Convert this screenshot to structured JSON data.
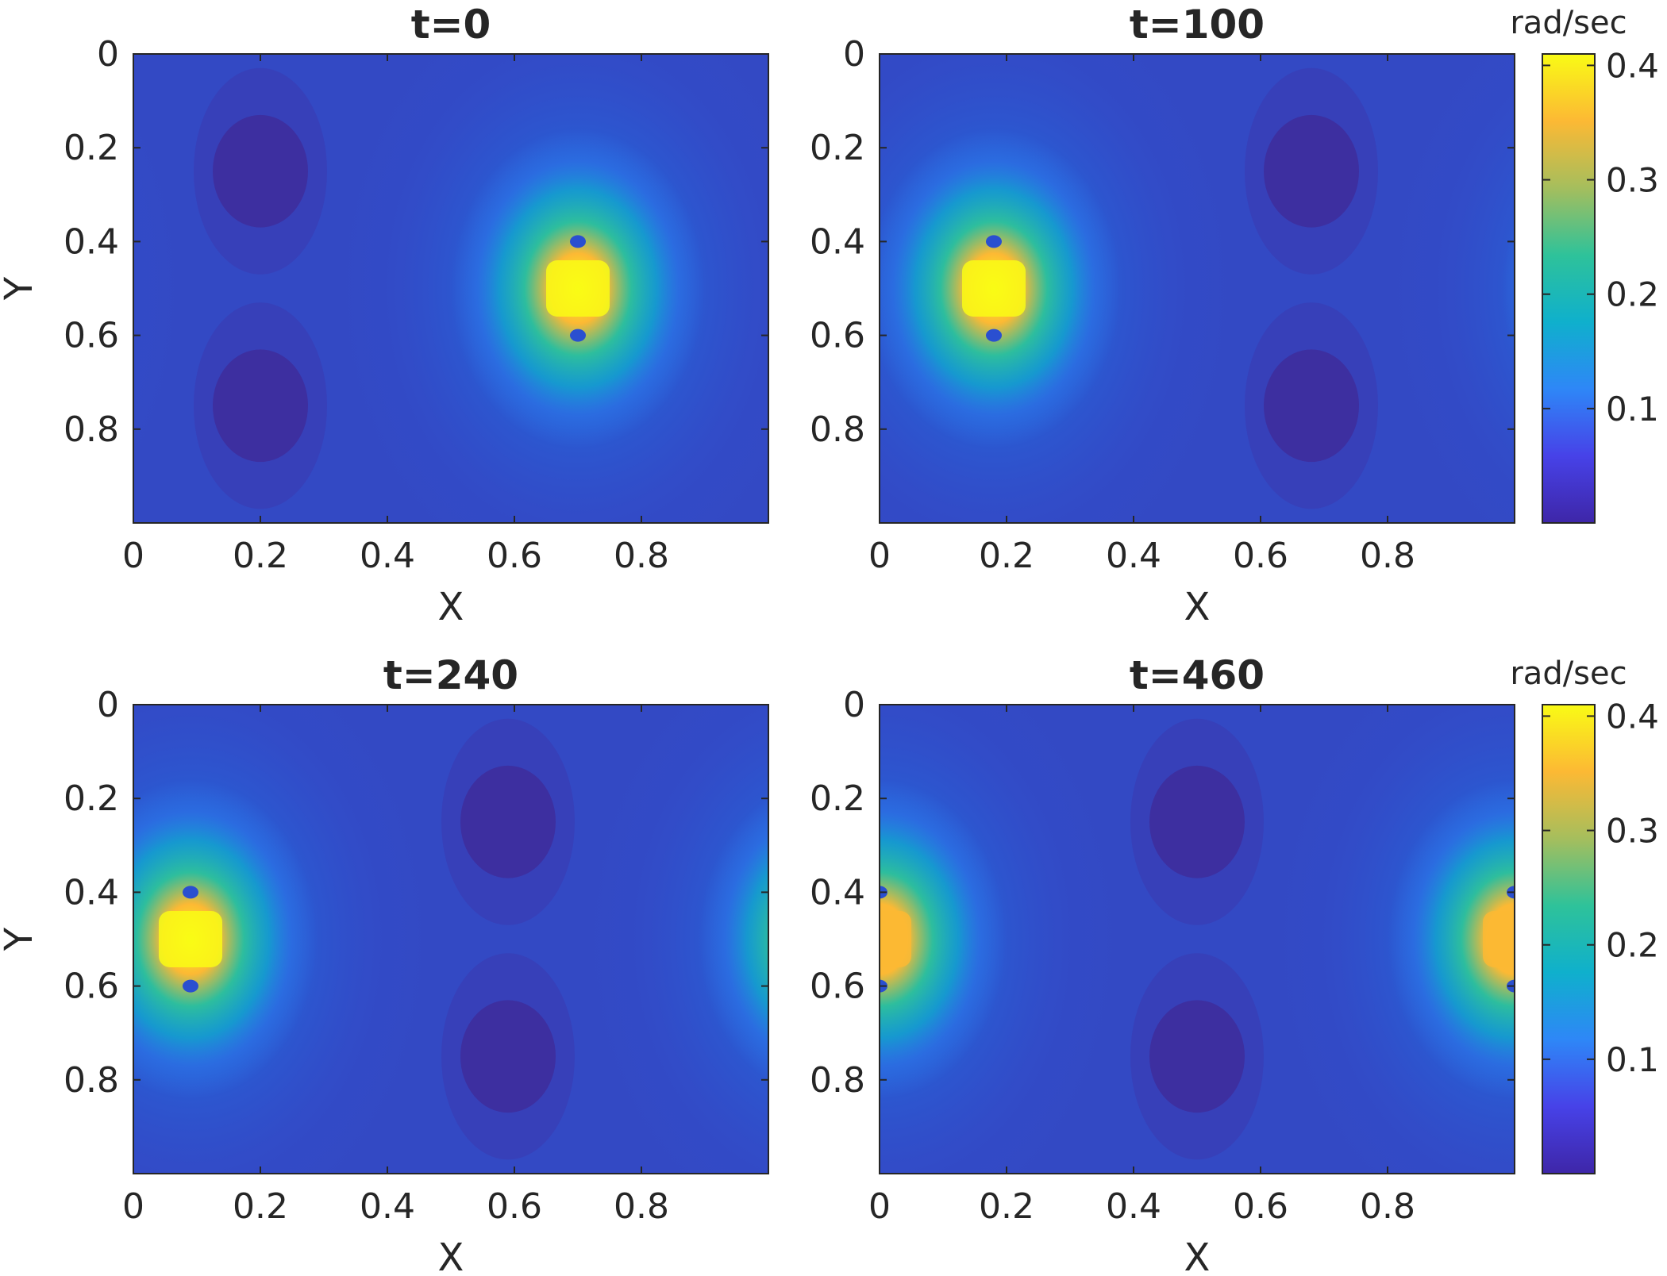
{
  "chart_data": [
    {
      "type": "heatmap",
      "title": "t=0",
      "xlabel": "X",
      "ylabel": "Y",
      "xlim": [
        0,
        1
      ],
      "ylim": [
        1,
        0
      ],
      "x_ticks": [
        "0",
        "0.2",
        "0.4",
        "0.6",
        "0.8"
      ],
      "y_ticks": [
        "0",
        "0.2",
        "0.4",
        "0.6",
        "0.8"
      ],
      "peaks": [
        {
          "x": 0.7,
          "y": 0.5,
          "value": 0.4
        }
      ],
      "troughs": [
        {
          "x": 0.2,
          "y": 0.25
        },
        {
          "x": 0.2,
          "y": 0.75
        }
      ]
    },
    {
      "type": "heatmap",
      "title": "t=100",
      "xlabel": "X",
      "ylabel": "",
      "xlim": [
        0,
        1
      ],
      "ylim": [
        1,
        0
      ],
      "x_ticks": [
        "0",
        "0.2",
        "0.4",
        "0.6",
        "0.8"
      ],
      "y_ticks": [
        "0",
        "0.2",
        "0.4",
        "0.6",
        "0.8"
      ],
      "peaks": [
        {
          "x": 0.18,
          "y": 0.5,
          "value": 0.4
        }
      ],
      "troughs": [
        {
          "x": 0.68,
          "y": 0.25
        },
        {
          "x": 0.68,
          "y": 0.75
        }
      ],
      "colorbar": {
        "unit": "rad/sec",
        "range": [
          0,
          0.41
        ],
        "ticks": [
          "0.1",
          "0.2",
          "0.3",
          "0.4"
        ]
      }
    },
    {
      "type": "heatmap",
      "title": "t=240",
      "xlabel": "X",
      "ylabel": "Y",
      "xlim": [
        0,
        1
      ],
      "ylim": [
        1,
        0
      ],
      "x_ticks": [
        "0",
        "0.2",
        "0.4",
        "0.6",
        "0.8"
      ],
      "y_ticks": [
        "0",
        "0.2",
        "0.4",
        "0.6",
        "0.8"
      ],
      "peaks": [
        {
          "x": 0.09,
          "y": 0.5,
          "value": 0.4
        }
      ],
      "troughs": [
        {
          "x": 0.59,
          "y": 0.25
        },
        {
          "x": 0.59,
          "y": 0.75
        }
      ]
    },
    {
      "type": "heatmap",
      "title": "t=460",
      "xlabel": "X",
      "ylabel": "",
      "xlim": [
        0,
        1
      ],
      "ylim": [
        1,
        0
      ],
      "x_ticks": [
        "0",
        "0.2",
        "0.4",
        "0.6",
        "0.8"
      ],
      "y_ticks": [
        "0",
        "0.2",
        "0.4",
        "0.6",
        "0.8"
      ],
      "peaks": [
        {
          "x": 1.0,
          "y": 0.5,
          "value": 0.36
        }
      ],
      "troughs": [
        {
          "x": 0.5,
          "y": 0.25
        },
        {
          "x": 0.5,
          "y": 0.75
        }
      ],
      "colorbar": {
        "unit": "rad/sec",
        "range": [
          0,
          0.41
        ],
        "ticks": [
          "0.1",
          "0.2",
          "0.3",
          "0.4"
        ]
      }
    }
  ],
  "colormap": [
    "#3e26a8",
    "#4742e8",
    "#2e87f7",
    "#0fb0cc",
    "#2ec29a",
    "#a5be5d",
    "#fcb934",
    "#f9fb15"
  ],
  "background": "#ffffff"
}
